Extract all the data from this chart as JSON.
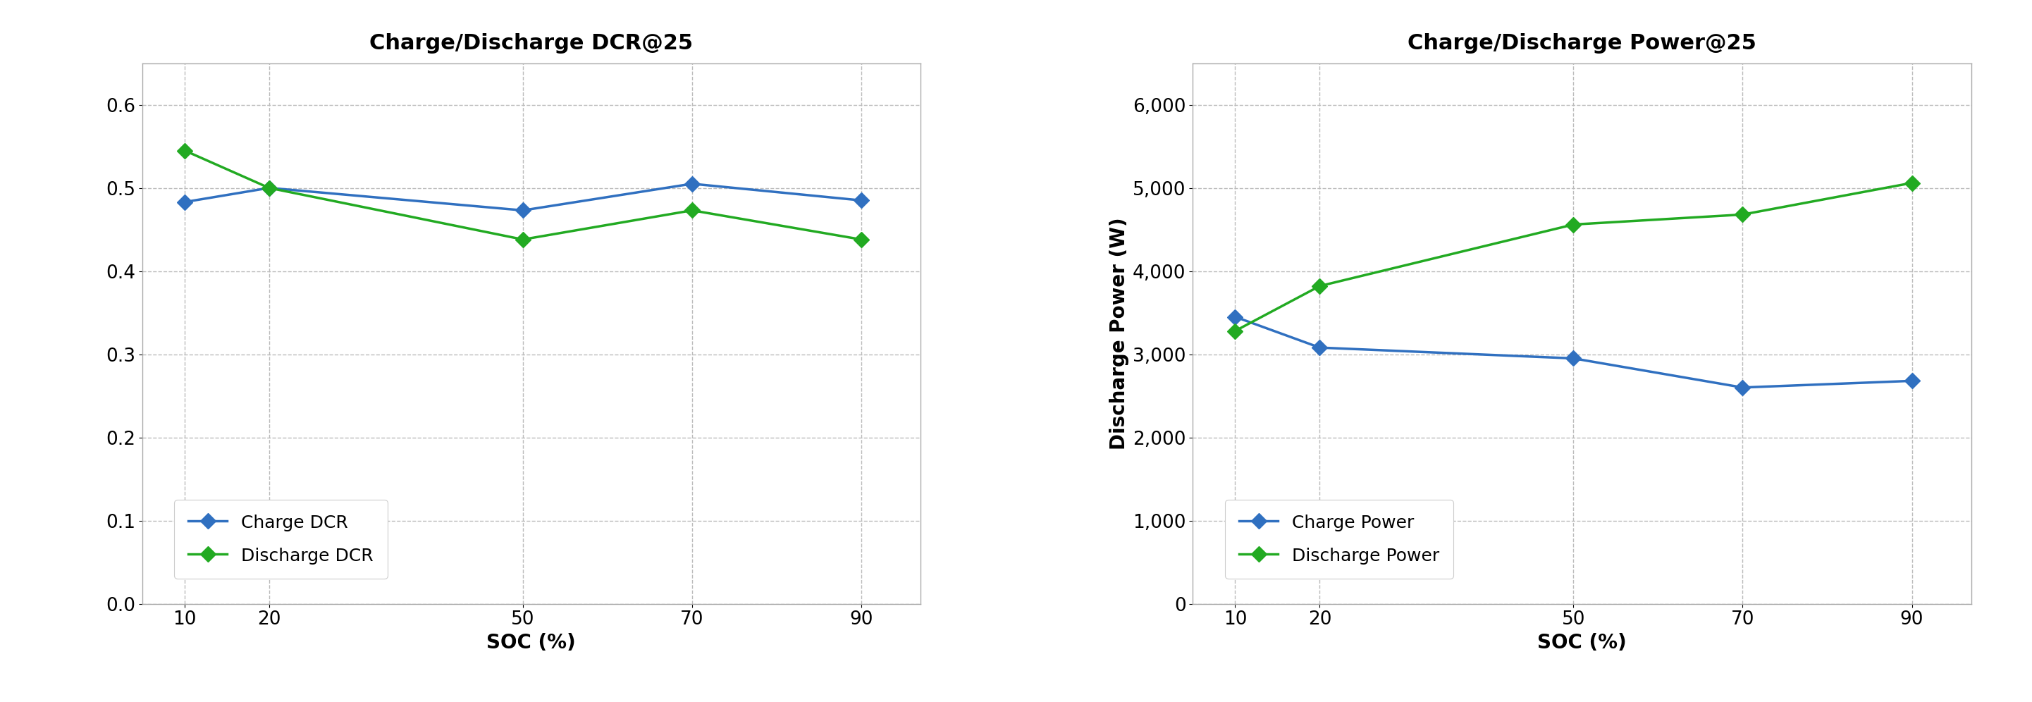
{
  "soc": [
    10,
    20,
    50,
    70,
    90
  ],
  "chart1": {
    "title": "Charge/Discharge DCR@25",
    "charge_dcr": [
      0.483,
      0.5,
      0.473,
      0.505,
      0.485
    ],
    "discharge_dcr": [
      0.545,
      0.5,
      0.438,
      0.473,
      0.438
    ],
    "charge_label": "Charge DCR",
    "discharge_label": "Discharge DCR",
    "ylabel": "",
    "xlabel": "SOC (%)",
    "ylim": [
      0.0,
      0.65
    ],
    "yticks": [
      0.0,
      0.1,
      0.2,
      0.3,
      0.4,
      0.5,
      0.6
    ]
  },
  "chart2": {
    "title": "Charge/Discharge Power@25",
    "charge_power": [
      3450,
      3080,
      2950,
      2600,
      2680
    ],
    "discharge_power": [
      3280,
      3820,
      4560,
      4680,
      5060
    ],
    "charge_label": "Charge Power",
    "discharge_label": "Discharge Power",
    "ylabel": "Discharge Power (W)",
    "xlabel": "SOC (%)",
    "ylim": [
      0,
      6500
    ],
    "yticks": [
      0,
      1000,
      2000,
      3000,
      4000,
      5000,
      6000
    ]
  },
  "blue_color": "#3070C0",
  "green_color": "#22AA22",
  "background_color": "#FFFFFF",
  "plot_bg_color": "#FFFFFF",
  "grid_color": "#BBBBBB",
  "title_fontsize": 22,
  "label_fontsize": 20,
  "tick_fontsize": 19,
  "legend_fontsize": 18,
  "linewidth": 2.5,
  "markersize": 11
}
